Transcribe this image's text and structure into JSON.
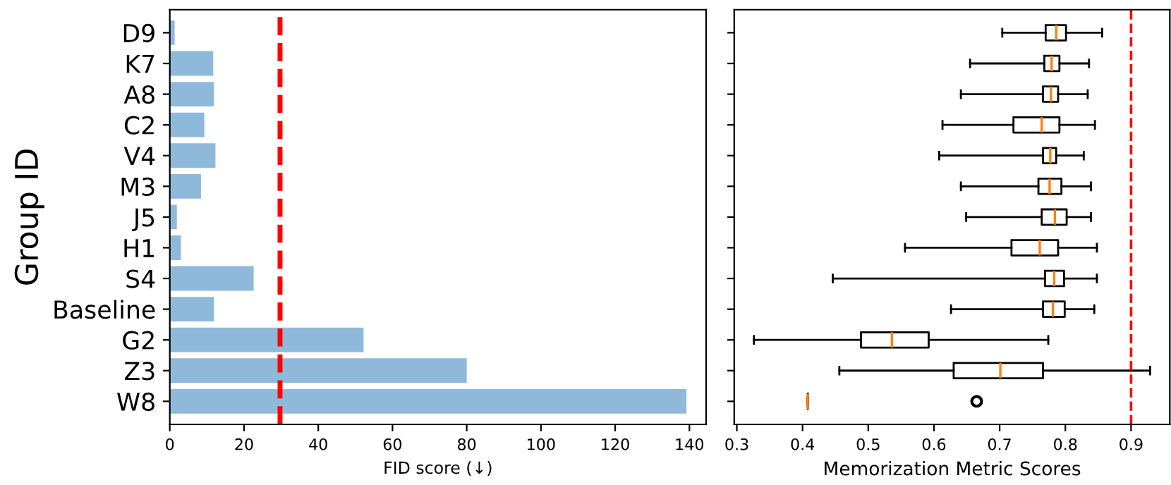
{
  "chart_data": [
    {
      "type": "bar",
      "orientation": "horizontal",
      "xlabel": "FID score (↓)",
      "ylabel": "Group ID",
      "categories": [
        "D9",
        "K7",
        "A8",
        "C2",
        "V4",
        "M3",
        "J5",
        "H1",
        "S4",
        "Baseline",
        "G2",
        "Z3",
        "W8"
      ],
      "values": [
        1.3,
        11.7,
        11.9,
        9.3,
        12.3,
        8.4,
        1.9,
        3.0,
        22.6,
        11.9,
        52.2,
        80.0,
        139.2
      ],
      "color": "#8fb9da",
      "xlim": [
        0,
        144.5
      ],
      "xticks": [
        0,
        20,
        40,
        60,
        80,
        100,
        120,
        140
      ],
      "ref_lines": [
        {
          "axis": "x",
          "value": 29.7,
          "color": "#ff0000",
          "line_style": "dashed"
        }
      ]
    },
    {
      "type": "box",
      "orientation": "horizontal",
      "xlabel": "Memorization Metric Scores",
      "tick_labels": "x",
      "boxes": [
        {
          "low": 0.704,
          "q1": 0.77,
          "median": 0.786,
          "q3": 0.801,
          "high": 0.856
        },
        {
          "low": 0.655,
          "q1": 0.768,
          "median": 0.779,
          "q3": 0.791,
          "high": 0.836
        },
        {
          "low": 0.641,
          "q1": 0.766,
          "median": 0.778,
          "q3": 0.789,
          "high": 0.834
        },
        {
          "low": 0.613,
          "q1": 0.721,
          "median": 0.764,
          "q3": 0.791,
          "high": 0.845
        },
        {
          "low": 0.608,
          "q1": 0.766,
          "median": 0.777,
          "q3": 0.786,
          "high": 0.828
        },
        {
          "low": 0.641,
          "q1": 0.759,
          "median": 0.776,
          "q3": 0.794,
          "high": 0.839
        },
        {
          "low": 0.649,
          "q1": 0.764,
          "median": 0.784,
          "q3": 0.802,
          "high": 0.839
        },
        {
          "low": 0.556,
          "q1": 0.718,
          "median": 0.761,
          "q3": 0.789,
          "high": 0.848
        },
        {
          "low": 0.446,
          "q1": 0.769,
          "median": 0.783,
          "q3": 0.798,
          "high": 0.848
        },
        {
          "low": 0.626,
          "q1": 0.766,
          "median": 0.781,
          "q3": 0.799,
          "high": 0.844
        },
        {
          "low": 0.326,
          "q1": 0.489,
          "median": 0.536,
          "q3": 0.592,
          "high": 0.774
        },
        {
          "low": 0.456,
          "q1": 0.63,
          "median": 0.701,
          "q3": 0.766,
          "high": 0.929
        },
        {
          "low": 0.408,
          "q1": 0.408,
          "median": 0.408,
          "q3": 0.408,
          "high": 0.408,
          "outliers": [
            0.665
          ]
        }
      ],
      "color": "#000000",
      "xlim": [
        0.296,
        0.959
      ],
      "xticks": [
        0.3,
        0.4,
        0.5,
        0.6,
        0.7,
        0.8,
        0.9
      ],
      "ref_lines": [
        {
          "axis": "x",
          "value": 0.9,
          "color": "#ff0000",
          "line_style": "dashed"
        }
      ]
    }
  ]
}
